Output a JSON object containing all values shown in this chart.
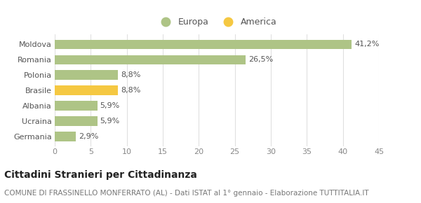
{
  "categories": [
    "Germania",
    "Ucraina",
    "Albania",
    "Brasile",
    "Polonia",
    "Romania",
    "Moldova"
  ],
  "values": [
    2.9,
    5.9,
    5.9,
    8.8,
    8.8,
    26.5,
    41.2
  ],
  "labels": [
    "2,9%",
    "5,9%",
    "5,9%",
    "8,8%",
    "8,8%",
    "26,5%",
    "41,2%"
  ],
  "colors": [
    "#aec486",
    "#aec486",
    "#aec486",
    "#f5c842",
    "#aec486",
    "#aec486",
    "#aec486"
  ],
  "europa_color": "#aec486",
  "america_color": "#f5c842",
  "xlim": [
    0,
    45
  ],
  "xticks": [
    0,
    5,
    10,
    15,
    20,
    25,
    30,
    35,
    40,
    45
  ],
  "title": "Cittadini Stranieri per Cittadinanza",
  "subtitle": "COMUNE DI FRASSINELLO MONFERRATO (AL) - Dati ISTAT al 1° gennaio - Elaborazione TUTTITALIA.IT",
  "legend_europa": "Europa",
  "legend_america": "America",
  "background_color": "#ffffff",
  "grid_color": "#e0e0e0",
  "bar_height": 0.6,
  "title_fontsize": 10,
  "subtitle_fontsize": 7.5,
  "label_fontsize": 8,
  "tick_fontsize": 8,
  "legend_fontsize": 9
}
